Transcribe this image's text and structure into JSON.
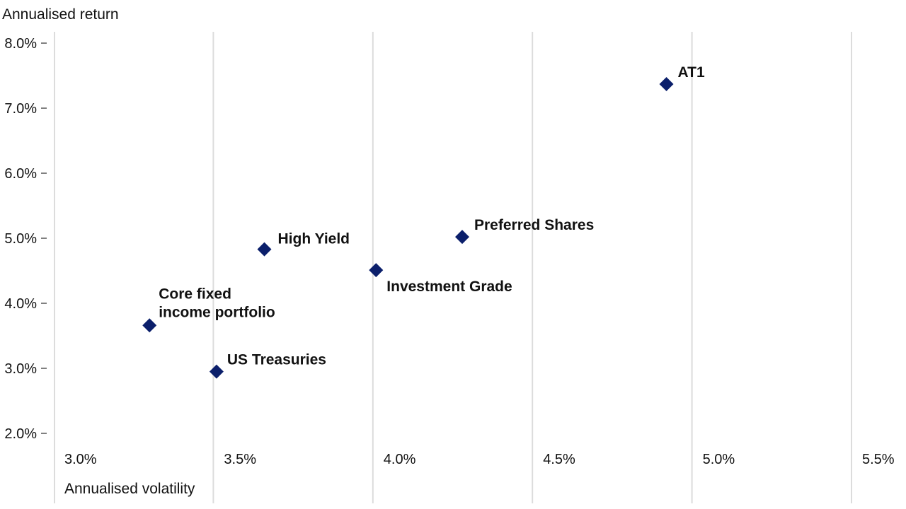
{
  "chart_data": {
    "type": "scatter",
    "title": "",
    "xlabel": "Annualised volatility",
    "ylabel": "Annualised return",
    "xlim": [
      3.0,
      5.5
    ],
    "ylim": [
      2.0,
      8.0
    ],
    "x_ticks": [
      "3.0%",
      "3.5%",
      "4.0%",
      "4.5%",
      "5.0%",
      "5.5%"
    ],
    "y_ticks": [
      "8.0%",
      "7.0%",
      "6.0%",
      "5.0%",
      "4.0%",
      "3.0%",
      "2.0%"
    ],
    "grid": "vertical",
    "marker": "diamond",
    "marker_color": "#0b1f6b",
    "points": [
      {
        "label": [
          "AT1"
        ],
        "x": 4.9,
        "y": 7.37
      },
      {
        "label": [
          "Preferred Shares"
        ],
        "x": 4.26,
        "y": 5.02
      },
      {
        "label": [
          "High Yield"
        ],
        "x": 3.64,
        "y": 4.83
      },
      {
        "label": [
          "Investment Grade"
        ],
        "x": 3.99,
        "y": 4.51
      },
      {
        "label": [
          "Core fixed",
          "income portfolio"
        ],
        "x": 3.28,
        "y": 3.66
      },
      {
        "label": [
          "US Treasuries"
        ],
        "x": 3.49,
        "y": 2.95
      }
    ]
  }
}
